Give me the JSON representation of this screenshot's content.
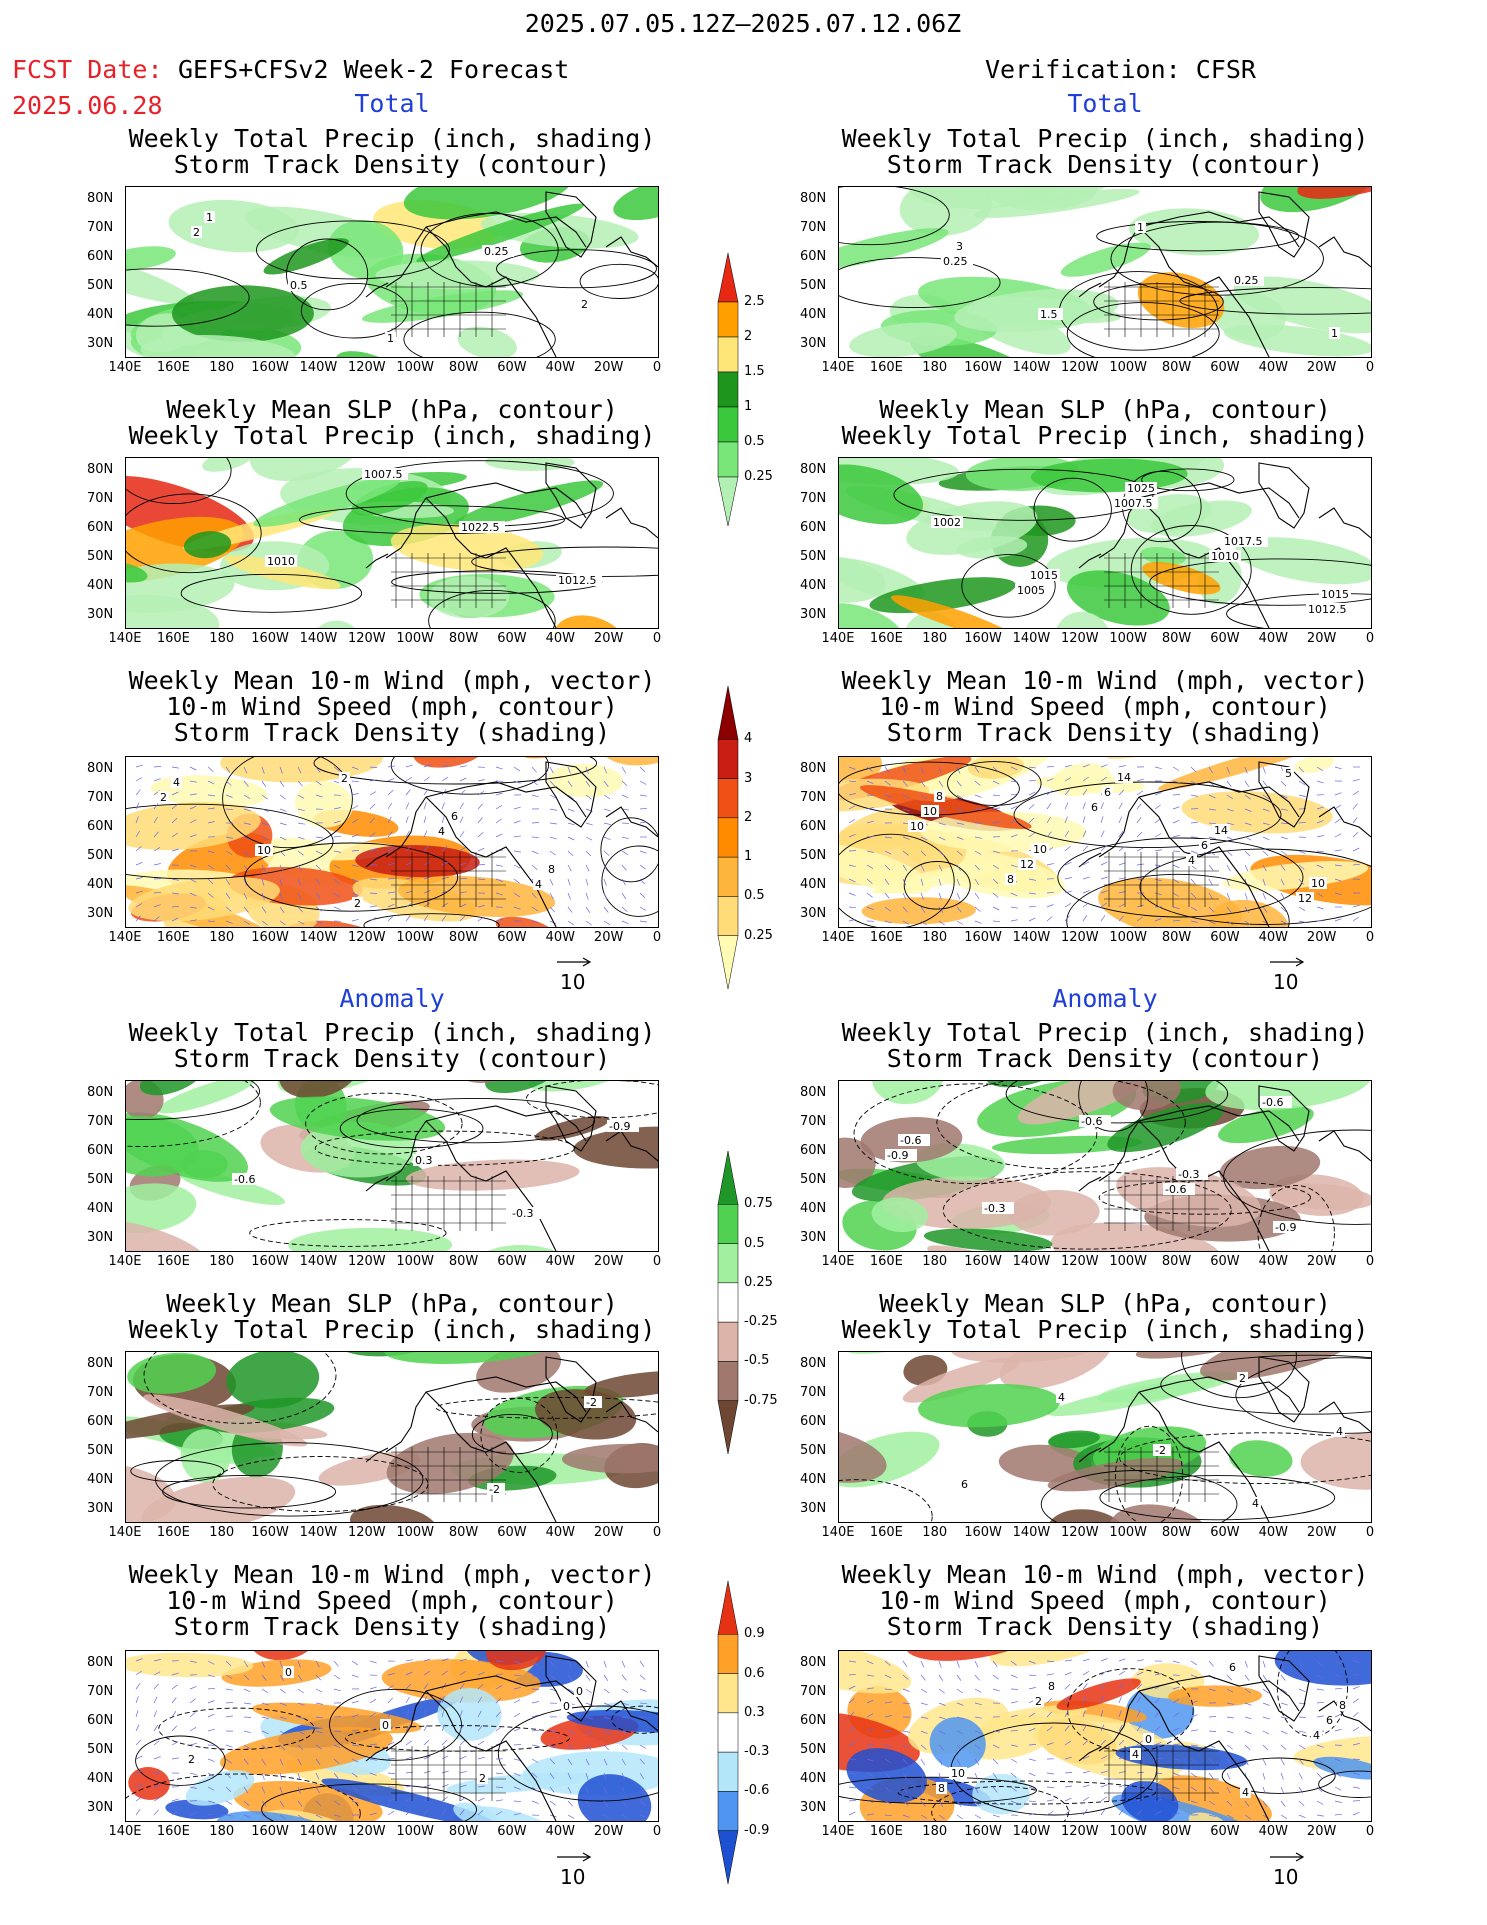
{
  "header": {
    "title": "2025.07.05.12Z–2025.07.12.06Z",
    "fcst_label": "FCST Date:",
    "fcst_model": "GEFS+CFSv2 Week-2 Forecast",
    "fcst_date": "2025.06.28",
    "verification": "Verification: CFSR"
  },
  "sections": {
    "total": "Total",
    "anomaly": "Anomaly"
  },
  "panel_titles": {
    "precip_storm": "Weekly Total Precip (inch, shading)\nStorm Track Density (contour)",
    "slp_precip": "Weekly Mean SLP (hPa, contour)\nWeekly Total Precip (inch, shading)",
    "wind_storm": "Weekly Mean 10-m Wind (mph, vector)\n10-m Wind Speed (mph, contour)\nStorm Track Density (shading)"
  },
  "axes": {
    "lat_labels": [
      "80N",
      "70N",
      "60N",
      "50N",
      "40N",
      "30N"
    ],
    "lon_labels": [
      "140E",
      "160E",
      "180",
      "160W",
      "140W",
      "120W",
      "100W",
      "80W",
      "60W",
      "40W",
      "20W",
      "0"
    ]
  },
  "vector_ref": "10",
  "colorbars": {
    "total_precip": {
      "levels": [
        "0.25",
        "0.5",
        "1",
        "1.5",
        "2",
        "2.5"
      ],
      "colors": [
        "#b4f0b4",
        "#78e678",
        "#3cc83c",
        "#1e961e",
        "#ffe678",
        "#ffa000",
        "#e62814"
      ]
    },
    "total_storm": {
      "levels": [
        "0.25",
        "0.5",
        "1",
        "2",
        "3",
        "4"
      ],
      "colors": [
        "#fffab4",
        "#ffdc78",
        "#ffb43c",
        "#ff8c00",
        "#f05014",
        "#c81e14",
        "#8c0000"
      ]
    },
    "anom_precip": {
      "levels": [
        "-0.75",
        "-0.5",
        "-0.25",
        "0.25",
        "0.5",
        "0.75"
      ],
      "colors": [
        "#6e4632",
        "#a0786e",
        "#dcb4aa",
        "#ffffff",
        "#a0f0a0",
        "#50d250",
        "#1e9628"
      ]
    },
    "anom_storm": {
      "levels": [
        "-0.9",
        "-0.6",
        "-0.3",
        "0.3",
        "0.6",
        "0.9"
      ],
      "colors": [
        "#1e50d2",
        "#5096f0",
        "#b4e6fa",
        "#ffffff",
        "#ffe68c",
        "#ffa028",
        "#e63214"
      ]
    }
  },
  "contour_labels": {
    "p1": [
      "2",
      "0.5",
      "1",
      "0.25",
      "2",
      "1"
    ],
    "p2": [
      "0.25",
      "1.5",
      "1",
      "0.25",
      "1",
      "3"
    ],
    "p3": [
      "1010",
      "1007.5",
      "1022.5",
      "1012.5"
    ],
    "p4": [
      "1005",
      "1007.5",
      "1010",
      "1012.5",
      "1002",
      "1015",
      "1025",
      "1017.5",
      "1015"
    ],
    "p5": [
      "2",
      "4",
      "4",
      "2",
      "10",
      "2",
      "6",
      "8",
      "4"
    ],
    "p6": [
      "6",
      "4",
      "5",
      "10",
      "8",
      "6",
      "6",
      "12",
      "10",
      "12",
      "14",
      "14",
      "10",
      "8",
      "10"
    ],
    "p7": [
      "0.3",
      "-0.3",
      "-0.9",
      "-0.6"
    ],
    "p8": [
      "-0.6",
      "-0.6",
      "-0.9",
      "-0.3",
      "-0.6",
      "-0.3",
      "-0.9",
      "-0.6"
    ],
    "p9": [
      "-2",
      "-2"
    ],
    "p10": [
      "2",
      "4",
      "6",
      "4",
      "-2",
      "4"
    ],
    "p11": [
      "0",
      "2",
      "0",
      "0",
      "2",
      "0"
    ],
    "p12": [
      "4",
      "8",
      "2",
      "4",
      "6",
      "6",
      "10",
      "8",
      "0",
      "4",
      "8"
    ]
  }
}
